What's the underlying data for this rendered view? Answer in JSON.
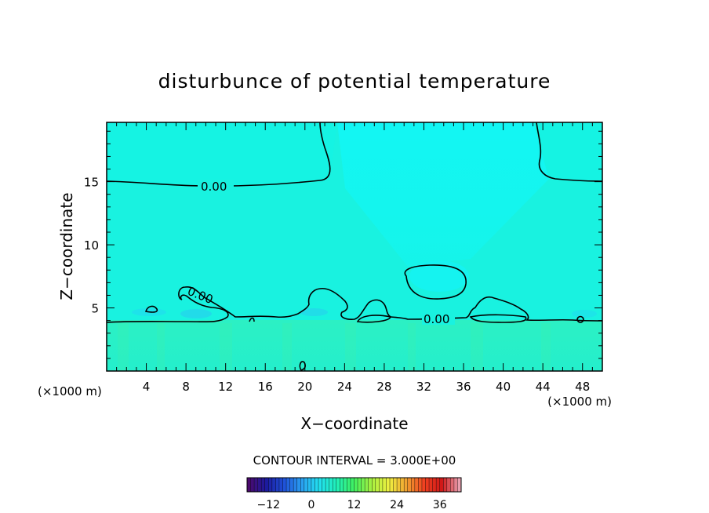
{
  "chart_data": {
    "type": "heatmap",
    "title": "disturbunce of potential temperature",
    "xlabel": "X−coordinate",
    "ylabel": "Z−coordinate",
    "x_unit_label": "(×1000 m)",
    "z_unit_label": "(×1000 m)",
    "xlim": [
      0,
      50
    ],
    "ylim": [
      0,
      19.7
    ],
    "x_ticks": [
      "4",
      "8",
      "12",
      "16",
      "20",
      "24",
      "28",
      "32",
      "36",
      "40",
      "44",
      "48"
    ],
    "y_ticks": [
      "5",
      "10",
      "15"
    ],
    "contour_labels": [
      "0.00",
      "0.00",
      "0.00"
    ],
    "contour_interval_text": "CONTOUR INTERVAL = 3.000E+00",
    "colorbar": {
      "ticks": [
        "−12",
        "0",
        "12",
        "24",
        "36"
      ],
      "range": [
        -18,
        42
      ],
      "colors": [
        "#4b0a6e",
        "#1c1a9e",
        "#1f50d8",
        "#2a9ef0",
        "#22e0f0",
        "#20f0b8",
        "#40f060",
        "#a8f040",
        "#f0f040",
        "#f0a030",
        "#f04020",
        "#d01818",
        "#e8a0b0"
      ]
    },
    "field_colors": {
      "background": "#19f2e0",
      "upper": "#12f4e8",
      "plume": "#10f7f7",
      "low_layer": "#28f0c8",
      "bubble": "#14f2f4"
    }
  }
}
